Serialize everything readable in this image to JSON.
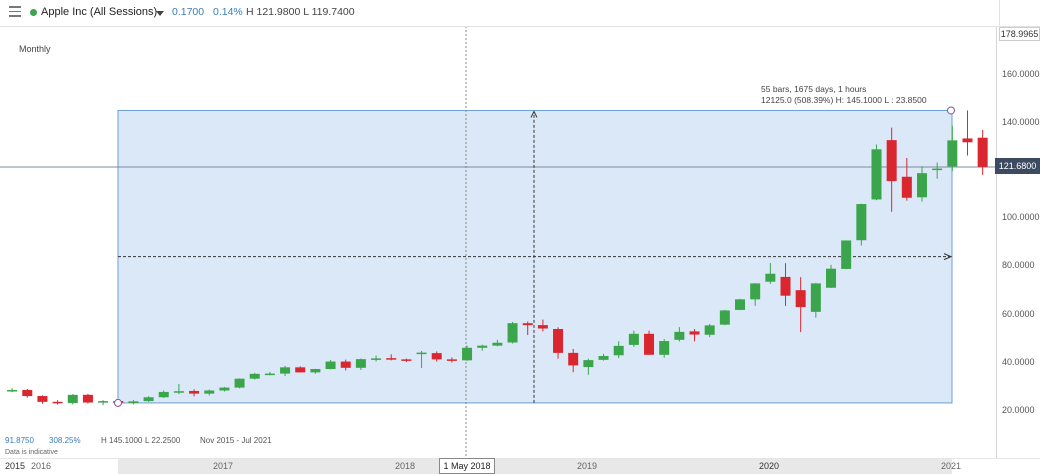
{
  "header": {
    "symbol": "Apple Inc (All Sessions)",
    "change": "0.1700",
    "change_pct": "0.14%",
    "high_low": "H 121.9800 L 119.7400"
  },
  "chart_label": "Monthly",
  "yaxis": {
    "top_value": "178.9965",
    "ticks": [
      "160.0000",
      "140.0000",
      "121.6800",
      "100.0000",
      "80.0000",
      "60.0000",
      "40.0000",
      "20.0000"
    ],
    "current_price": "121.6800"
  },
  "xaxis": {
    "labels": [
      "2015",
      "2016",
      "2017",
      "2018",
      "2019",
      "2020",
      "2021"
    ],
    "crosshair_label": "1 May 2018"
  },
  "measure": {
    "line1": "55 bars, 1675 days, 1 hours",
    "line2": "12125.0 (508.39%)  H: 145.1000  L : 23.8500"
  },
  "bottom_stats": {
    "value": "91.8750",
    "pct": "308.25%",
    "high": "H 145.1000",
    "low": "L 22.2500",
    "range": "Nov 2015 - Jul 2021",
    "note": "Data is indicative"
  },
  "colors": {
    "up": "#3aa54a",
    "down": "#d9262f",
    "selection": "#dbe8f7",
    "price_tag": "#3c4a62"
  },
  "chart_data": {
    "type": "candlestick",
    "interval": "monthly",
    "ylim": [
      20,
      179
    ],
    "candles": [
      {
        "o": 29.0,
        "h": 30.0,
        "l": 28.3,
        "c": 29.2
      },
      {
        "o": 29.2,
        "h": 29.6,
        "l": 26.0,
        "c": 26.7
      },
      {
        "o": 26.7,
        "h": 27.0,
        "l": 23.5,
        "c": 24.3
      },
      {
        "o": 24.3,
        "h": 25.0,
        "l": 23.2,
        "c": 23.8
      },
      {
        "o": 23.8,
        "h": 27.5,
        "l": 23.2,
        "c": 27.2
      },
      {
        "o": 27.2,
        "h": 27.6,
        "l": 23.6,
        "c": 24.0
      },
      {
        "o": 24.0,
        "h": 25.0,
        "l": 22.9,
        "c": 24.6
      },
      {
        "o": 24.6,
        "h": 25.0,
        "l": 22.25,
        "c": 23.8
      },
      {
        "o": 23.8,
        "h": 25.0,
        "l": 23.2,
        "c": 24.5
      },
      {
        "o": 24.6,
        "h": 26.6,
        "l": 24.3,
        "c": 26.2
      },
      {
        "o": 26.2,
        "h": 29.0,
        "l": 25.9,
        "c": 28.4
      },
      {
        "o": 28.4,
        "h": 31.7,
        "l": 27.5,
        "c": 28.7
      },
      {
        "o": 28.8,
        "h": 29.5,
        "l": 26.6,
        "c": 27.7
      },
      {
        "o": 27.7,
        "h": 29.4,
        "l": 27.0,
        "c": 29.0
      },
      {
        "o": 29.0,
        "h": 30.5,
        "l": 28.6,
        "c": 30.2
      },
      {
        "o": 30.2,
        "h": 34.0,
        "l": 29.9,
        "c": 33.9
      },
      {
        "o": 33.9,
        "h": 36.3,
        "l": 33.5,
        "c": 35.9
      },
      {
        "o": 36.0,
        "h": 36.7,
        "l": 35.3,
        "c": 36.0
      },
      {
        "o": 36.0,
        "h": 39.2,
        "l": 35.0,
        "c": 38.6
      },
      {
        "o": 38.6,
        "h": 39.0,
        "l": 36.5,
        "c": 36.5
      },
      {
        "o": 36.5,
        "h": 38.0,
        "l": 36.0,
        "c": 37.9
      },
      {
        "o": 37.9,
        "h": 41.6,
        "l": 37.8,
        "c": 41.0
      },
      {
        "o": 41.0,
        "h": 41.8,
        "l": 37.3,
        "c": 38.4
      },
      {
        "o": 38.4,
        "h": 42.2,
        "l": 37.5,
        "c": 42.0
      },
      {
        "o": 42.0,
        "h": 43.5,
        "l": 41.0,
        "c": 42.3
      },
      {
        "o": 42.4,
        "h": 44.0,
        "l": 41.5,
        "c": 41.9
      },
      {
        "o": 41.9,
        "h": 42.2,
        "l": 40.8,
        "c": 41.4
      },
      {
        "o": 44.1,
        "h": 45.4,
        "l": 38.3,
        "c": 44.7
      },
      {
        "o": 44.5,
        "h": 45.2,
        "l": 41.0,
        "c": 41.9
      },
      {
        "o": 41.9,
        "h": 42.7,
        "l": 40.6,
        "c": 41.4
      },
      {
        "o": 41.5,
        "h": 47.6,
        "l": 41.3,
        "c": 46.7
      },
      {
        "o": 46.7,
        "h": 48.0,
        "l": 45.5,
        "c": 47.6
      },
      {
        "o": 47.6,
        "h": 50.0,
        "l": 47.3,
        "c": 48.8
      },
      {
        "o": 48.9,
        "h": 57.4,
        "l": 48.5,
        "c": 56.9
      },
      {
        "o": 56.9,
        "h": 57.6,
        "l": 52.0,
        "c": 56.1
      },
      {
        "o": 56.1,
        "h": 58.4,
        "l": 53.5,
        "c": 54.7
      },
      {
        "o": 54.5,
        "h": 55.2,
        "l": 42.2,
        "c": 44.6
      },
      {
        "o": 44.6,
        "h": 46.2,
        "l": 36.6,
        "c": 39.4
      },
      {
        "o": 38.7,
        "h": 42.2,
        "l": 35.5,
        "c": 41.6
      },
      {
        "o": 41.7,
        "h": 44.2,
        "l": 41.4,
        "c": 43.3
      },
      {
        "o": 43.6,
        "h": 49.4,
        "l": 42.4,
        "c": 47.5
      },
      {
        "o": 47.9,
        "h": 53.8,
        "l": 47.1,
        "c": 52.5
      },
      {
        "o": 52.5,
        "h": 53.8,
        "l": 43.8,
        "c": 43.8
      },
      {
        "o": 43.8,
        "h": 50.3,
        "l": 42.6,
        "c": 49.5
      },
      {
        "o": 50.0,
        "h": 55.3,
        "l": 49.3,
        "c": 53.3
      },
      {
        "o": 53.5,
        "h": 54.5,
        "l": 49.4,
        "c": 52.2
      },
      {
        "o": 52.1,
        "h": 56.6,
        "l": 51.1,
        "c": 56.0
      },
      {
        "o": 56.3,
        "h": 62.4,
        "l": 56.1,
        "c": 62.2
      },
      {
        "o": 62.4,
        "h": 67.0,
        "l": 62.3,
        "c": 66.8
      },
      {
        "o": 66.8,
        "h": 73.5,
        "l": 64.1,
        "c": 73.4
      },
      {
        "o": 74.1,
        "h": 81.9,
        "l": 73.2,
        "c": 77.4
      },
      {
        "o": 76.1,
        "h": 81.8,
        "l": 64.1,
        "c": 68.3
      },
      {
        "o": 70.6,
        "h": 76.0,
        "l": 53.2,
        "c": 63.6
      },
      {
        "o": 61.6,
        "h": 73.6,
        "l": 59.2,
        "c": 73.4
      },
      {
        "o": 71.6,
        "h": 81.1,
        "l": 71.5,
        "c": 79.5
      },
      {
        "o": 79.4,
        "h": 91.2,
        "l": 79.3,
        "c": 91.2
      },
      {
        "o": 91.3,
        "h": 106.4,
        "l": 89.1,
        "c": 106.3
      },
      {
        "o": 108.2,
        "h": 131.0,
        "l": 107.9,
        "c": 129.0
      },
      {
        "o": 132.8,
        "h": 137.98,
        "l": 103.1,
        "c": 115.8
      },
      {
        "o": 117.6,
        "h": 125.4,
        "l": 107.7,
        "c": 108.9
      },
      {
        "o": 109.1,
        "h": 121.99,
        "l": 107.3,
        "c": 119.1
      },
      {
        "o": 121.0,
        "h": 123.5,
        "l": 116.8,
        "c": 121.0
      },
      {
        "o": 121.9,
        "h": 138.8,
        "l": 120.0,
        "c": 132.7
      },
      {
        "o": 133.5,
        "h": 145.1,
        "l": 126.4,
        "c": 131.9
      },
      {
        "o": 133.8,
        "h": 137.0,
        "l": 118.4,
        "c": 121.68
      }
    ]
  }
}
